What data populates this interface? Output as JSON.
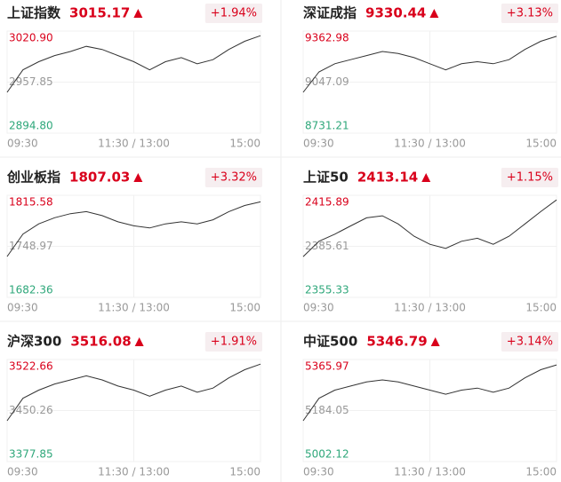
{
  "chart_data": [
    {
      "type": "line",
      "title": "上证指数",
      "price": 3015.17,
      "change": {
        "value": 1.94,
        "label": "+1.94%"
      },
      "categories": [
        "09:30",
        null,
        null,
        null,
        null,
        null,
        null,
        null,
        "11:30 / 13:00",
        null,
        null,
        null,
        null,
        null,
        null,
        null,
        "15:00"
      ],
      "series": [
        {
          "color": "#333333",
          "values": [
            2945.2,
            2973.0,
            2983.1,
            2990.6,
            2995.7,
            3002.0,
            2998.2,
            2990.6,
            2983.1,
            2973.0,
            2983.1,
            2988.1,
            2980.5,
            2985.6,
            2998.2,
            3008.3,
            3015.17
          ]
        }
      ],
      "ylim": [
        2894.8,
        3020.9
      ],
      "yticks": [
        {
          "value": 3020.9,
          "label": "3020.90"
        },
        {
          "value": 2957.85,
          "label": "2957.85"
        },
        {
          "value": 2894.8,
          "label": "2894.80"
        }
      ],
      "ytick_colors": [
        "#d9001b",
        "#999999",
        "#2ea77a"
      ],
      "grid": true
    },
    {
      "type": "line",
      "title": "深证成指",
      "price": 9330.44,
      "change": {
        "value": 3.13,
        "label": "+3.13%"
      },
      "categories": [
        "09:30",
        null,
        null,
        null,
        null,
        null,
        null,
        null,
        "11:30 / 13:00",
        null,
        null,
        null,
        null,
        null,
        null,
        null,
        "15:00"
      ],
      "series": [
        {
          "color": "#333333",
          "values": [
            8983.9,
            9110.3,
            9160.8,
            9186.1,
            9211.3,
            9236.6,
            9224.0,
            9198.7,
            9160.8,
            9122.9,
            9160.8,
            9173.4,
            9160.8,
            9186.1,
            9249.3,
            9299.8,
            9330.44
          ]
        }
      ],
      "ylim": [
        8731.21,
        9362.98
      ],
      "yticks": [
        {
          "value": 9362.98,
          "label": "9362.98"
        },
        {
          "value": 9047.09,
          "label": "9047.09"
        },
        {
          "value": 8731.21,
          "label": "8731.21"
        }
      ],
      "ytick_colors": [
        "#d9001b",
        "#999999",
        "#2ea77a"
      ],
      "grid": true
    },
    {
      "type": "line",
      "title": "创业板指",
      "price": 1807.03,
      "change": {
        "value": 3.32,
        "label": "+3.32%"
      },
      "categories": [
        "09:30",
        null,
        null,
        null,
        null,
        null,
        null,
        null,
        "11:30 / 13:00",
        null,
        null,
        null,
        null,
        null,
        null,
        null,
        "15:00"
      ],
      "series": [
        {
          "color": "#333333",
          "values": [
            1735.7,
            1765.0,
            1778.3,
            1786.3,
            1791.6,
            1794.3,
            1789.0,
            1781.0,
            1775.7,
            1773.0,
            1778.3,
            1781.0,
            1778.3,
            1783.6,
            1794.3,
            1802.3,
            1807.03
          ]
        }
      ],
      "ylim": [
        1682.36,
        1815.58
      ],
      "yticks": [
        {
          "value": 1815.58,
          "label": "1815.58"
        },
        {
          "value": 1748.97,
          "label": "1748.97"
        },
        {
          "value": 1682.36,
          "label": "1682.36"
        }
      ],
      "ytick_colors": [
        "#d9001b",
        "#999999",
        "#2ea77a"
      ],
      "grid": true
    },
    {
      "type": "line",
      "title": "上证50",
      "price": 2413.14,
      "change": {
        "value": 1.15,
        "label": "+1.15%"
      },
      "categories": [
        "09:30",
        null,
        null,
        null,
        null,
        null,
        null,
        null,
        "11:30 / 13:00",
        null,
        null,
        null,
        null,
        null,
        null,
        null,
        "15:00"
      ],
      "series": [
        {
          "color": "#333333",
          "values": [
            2379.5,
            2388.6,
            2392.8,
            2397.7,
            2402.5,
            2403.7,
            2398.9,
            2391.6,
            2386.8,
            2384.4,
            2388.6,
            2390.4,
            2386.8,
            2391.6,
            2398.9,
            2406.2,
            2413.14
          ]
        }
      ],
      "ylim": [
        2355.33,
        2415.89
      ],
      "yticks": [
        {
          "value": 2415.89,
          "label": "2415.89"
        },
        {
          "value": 2385.61,
          "label": "2385.61"
        },
        {
          "value": 2355.33,
          "label": "2355.33"
        }
      ],
      "ytick_colors": [
        "#d9001b",
        "#999999",
        "#2ea77a"
      ],
      "grid": true
    },
    {
      "type": "line",
      "title": "沪深300",
      "price": 3516.08,
      "change": {
        "value": 1.91,
        "label": "+1.91%"
      },
      "categories": [
        "09:30",
        null,
        null,
        null,
        null,
        null,
        null,
        null,
        "11:30 / 13:00",
        null,
        null,
        null,
        null,
        null,
        null,
        null,
        "15:00"
      ],
      "series": [
        {
          "color": "#333333",
          "values": [
            3435.8,
            3467.6,
            3479.2,
            3487.9,
            3493.7,
            3499.5,
            3493.7,
            3485.0,
            3479.2,
            3470.5,
            3479.2,
            3485.0,
            3476.3,
            3482.1,
            3496.6,
            3508.2,
            3516.08
          ]
        }
      ],
      "ylim": [
        3377.85,
        3522.66
      ],
      "yticks": [
        {
          "value": 3522.66,
          "label": "3522.66"
        },
        {
          "value": 3450.26,
          "label": "3450.26"
        },
        {
          "value": 3377.85,
          "label": "3377.85"
        }
      ],
      "ytick_colors": [
        "#d9001b",
        "#999999",
        "#2ea77a"
      ],
      "grid": true
    },
    {
      "type": "line",
      "title": "中证500",
      "price": 5346.79,
      "change": {
        "value": 3.14,
        "label": "+3.14%"
      },
      "categories": [
        "09:30",
        null,
        null,
        null,
        null,
        null,
        null,
        null,
        "11:30 / 13:00",
        null,
        null,
        null,
        null,
        null,
        null,
        null,
        "15:00"
      ],
      "series": [
        {
          "color": "#333333",
          "values": [
            5147.6,
            5227.7,
            5256.8,
            5271.3,
            5285.9,
            5293.2,
            5285.9,
            5271.3,
            5256.8,
            5242.2,
            5256.8,
            5264.1,
            5249.5,
            5264.1,
            5300.5,
            5329.6,
            5346.79
          ]
        }
      ],
      "ylim": [
        5002.12,
        5365.97
      ],
      "yticks": [
        {
          "value": 5365.97,
          "label": "5365.97"
        },
        {
          "value": 5184.05,
          "label": "5184.05"
        },
        {
          "value": 5002.12,
          "label": "5002.12"
        }
      ],
      "ytick_colors": [
        "#d9001b",
        "#999999",
        "#2ea77a"
      ],
      "grid": true
    }
  ]
}
